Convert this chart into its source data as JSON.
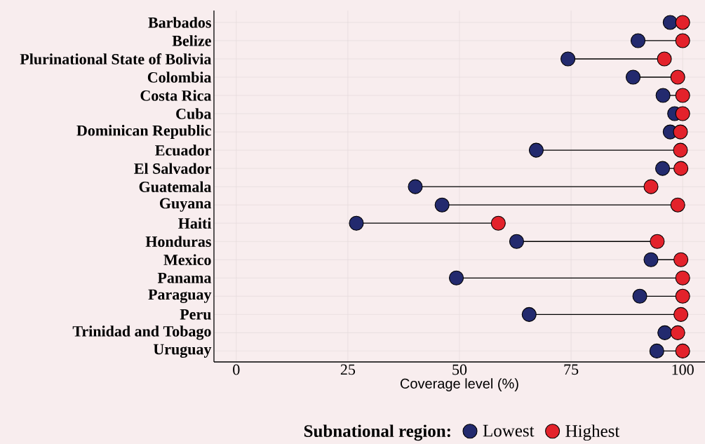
{
  "chart_data": {
    "type": "scatter",
    "orientation": "horizontal",
    "xlabel": "Coverage level (%)",
    "legend_title": "Subnational region:",
    "categories": [
      "Barbados",
      "Belize",
      "Plurinational State of Bolivia",
      "Colombia",
      "Costa Rica",
      "Cuba",
      "Dominican Republic",
      "Ecuador",
      "El Salvador",
      "Guatemala",
      "Guyana",
      "Haiti",
      "Honduras",
      "Mexico",
      "Panama",
      "Paraguay",
      "Peru",
      "Trinidad and Tobago",
      "Uruguay"
    ],
    "series": [
      {
        "name": "Lowest",
        "color": "#232a6e",
        "values": [
          97.2,
          90.0,
          74.3,
          88.9,
          95.6,
          98.2,
          97.2,
          67.2,
          95.5,
          40.1,
          46.1,
          26.9,
          62.8,
          92.9,
          49.3,
          90.4,
          65.6,
          96.0,
          94.2
        ]
      },
      {
        "name": "Highest",
        "color": "#e3222b",
        "values": [
          100,
          100,
          95.9,
          98.9,
          100,
          100,
          99.5,
          99.5,
          99.6,
          92.9,
          98.9,
          58.7,
          94.3,
          99.6,
          100,
          100,
          99.6,
          98.9,
          100
        ]
      }
    ],
    "xlim": [
      -5,
      105
    ],
    "xticks": [
      0,
      25,
      50,
      75,
      100
    ],
    "grid": true,
    "legend": "bottom",
    "marker": "circle"
  }
}
